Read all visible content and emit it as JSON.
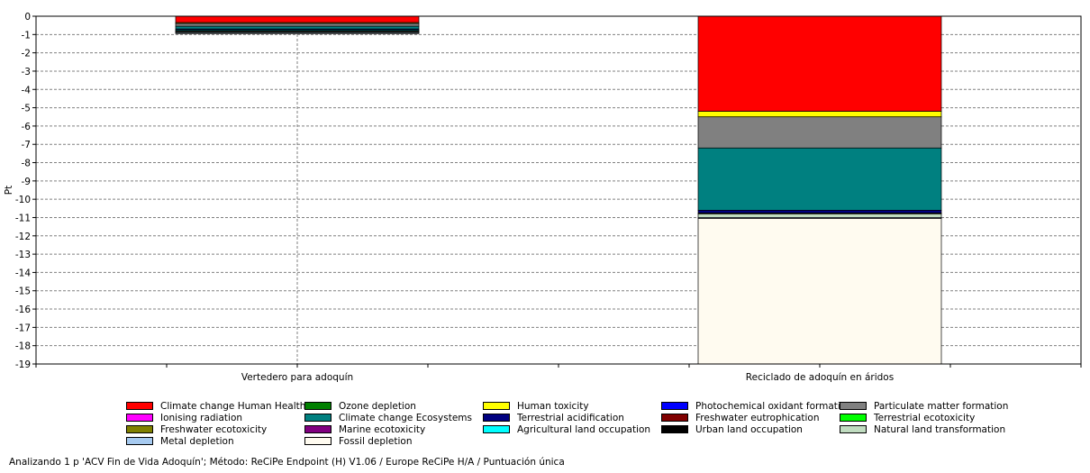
{
  "chart_data": {
    "type": "bar",
    "stacked": true,
    "categories": [
      "Vertedero para adoquín",
      "Reciclado de adoquín en áridos"
    ],
    "ylabel": "Pt",
    "xlabel": "",
    "ylim": [
      -19,
      0
    ],
    "yticks": [
      "0",
      "-1",
      "-2",
      "-3",
      "-4",
      "-5",
      "-6",
      "-7",
      "-8",
      "-9",
      "-10",
      "-11",
      "-12",
      "-13",
      "-14",
      "-15",
      "-16",
      "-17",
      "-18",
      "-19"
    ],
    "grid": true,
    "legend_position": "bottom",
    "series": [
      {
        "name": "Climate change Human Health",
        "color": "#ff0000",
        "values": [
          -0.35,
          -5.2
        ]
      },
      {
        "name": "Ozone depletion",
        "color": "#008000",
        "values": [
          0,
          0
        ]
      },
      {
        "name": "Human toxicity",
        "color": "#ffff00",
        "values": [
          -0.05,
          -0.3
        ]
      },
      {
        "name": "Photochemical oxidant formation",
        "color": "#0000ff",
        "values": [
          0,
          0
        ]
      },
      {
        "name": "Particulate matter formation",
        "color": "#808080",
        "values": [
          -0.15,
          -1.7
        ]
      },
      {
        "name": "Ionising radiation",
        "color": "#ff00ff",
        "values": [
          0,
          0
        ]
      },
      {
        "name": "Climate change Ecosystems",
        "color": "#008080",
        "values": [
          -0.15,
          -3.4
        ]
      },
      {
        "name": "Terrestrial acidification",
        "color": "#000080",
        "values": [
          -0.05,
          -0.15
        ]
      },
      {
        "name": "Freshwater eutrophication",
        "color": "#800000",
        "values": [
          0,
          0
        ]
      },
      {
        "name": "Terrestrial ecotoxicity",
        "color": "#00ff00",
        "values": [
          0,
          0
        ]
      },
      {
        "name": "Freshwater ecotoxicity",
        "color": "#808000",
        "values": [
          0,
          0
        ]
      },
      {
        "name": "Marine ecotoxicity",
        "color": "#800080",
        "values": [
          0,
          0
        ]
      },
      {
        "name": "Agricultural land occupation",
        "color": "#00ffff",
        "values": [
          -0.05,
          0
        ]
      },
      {
        "name": "Urban land occupation",
        "color": "#000000",
        "values": [
          -0.02,
          -0.05
        ]
      },
      {
        "name": "Natural land transformation",
        "color": "#c0dcc0",
        "values": [
          -0.05,
          -0.2
        ]
      },
      {
        "name": "Metal depletion",
        "color": "#a6caf0",
        "values": [
          -0.05,
          -0.05
        ]
      },
      {
        "name": "Fossil depletion",
        "color": "#fffbf0",
        "values": [
          -0.03,
          -7.95
        ]
      }
    ]
  },
  "footer_text": "Analizando 1 p 'ACV Fin de Vida Adoquín';  Método: ReCiPe Endpoint (H) V1.06 / Europe ReCiPe H/A / Puntuación única"
}
